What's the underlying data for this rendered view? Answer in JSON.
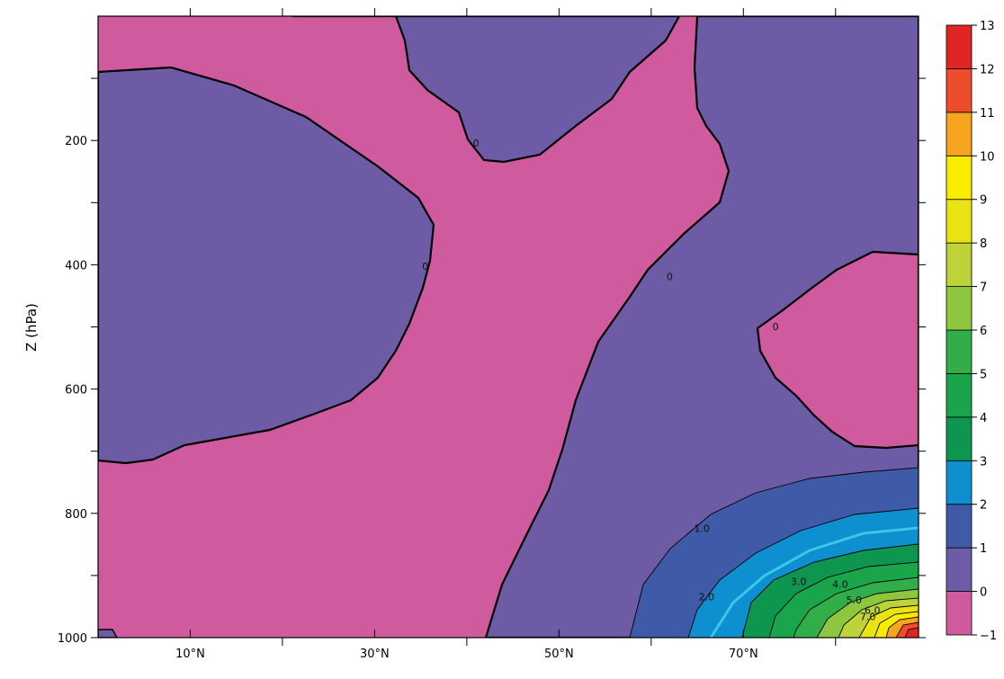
{
  "chart_data": {
    "type": "heatmap",
    "subtype": "filled-contour",
    "title": "",
    "xlabel": "",
    "ylabel": "Z (hPa)",
    "x_ticks": [
      {
        "value": 10,
        "label": "10°N"
      },
      {
        "value": 30,
        "label": "30°N"
      },
      {
        "value": 50,
        "label": "50°N"
      },
      {
        "value": 70,
        "label": "70°N"
      }
    ],
    "x_minor_ticks": [
      20,
      40,
      60,
      80
    ],
    "xlim": [
      0,
      89
    ],
    "y_ticks": [
      {
        "value": 200,
        "label": "200"
      },
      {
        "value": 400,
        "label": "400"
      },
      {
        "value": 600,
        "label": "600"
      },
      {
        "value": 800,
        "label": "800"
      },
      {
        "value": 1000,
        "label": "1000"
      }
    ],
    "y_minor_ticks": [
      100,
      300,
      500,
      700,
      900
    ],
    "ylim": [
      1000,
      0
    ],
    "grid": false,
    "colorbar": {
      "placement": "right",
      "levels": [
        -1,
        0,
        1,
        2,
        3,
        4,
        5,
        6,
        7,
        8,
        9,
        10,
        11,
        12,
        13
      ],
      "labels": [
        "−1",
        "0",
        "1",
        "2",
        "3",
        "4",
        "5",
        "6",
        "7",
        "8",
        "9",
        "10",
        "11",
        "12",
        "13"
      ],
      "colors": [
        "#d05a9e",
        "#6d5ba6",
        "#3f5ba8",
        "#0e8fcf",
        "#0e9650",
        "#1ba54b",
        "#31ad4a",
        "#8fc640",
        "#bdd339",
        "#eae213",
        "#f9ec00",
        "#f7a51e",
        "#ee4d2b",
        "#e02525"
      ]
    },
    "contour_labels": [
      {
        "text": "0",
        "x": 41,
        "y": 210
      },
      {
        "text": "0",
        "x": 35.5,
        "y": 408
      },
      {
        "text": "0",
        "x": 62,
        "y": 425
      },
      {
        "text": "0",
        "x": 73.5,
        "y": 505
      },
      {
        "text": "1.0",
        "x": 65.5,
        "y": 830
      },
      {
        "text": "2.0",
        "x": 66,
        "y": 940
      },
      {
        "text": "3.0",
        "x": 76,
        "y": 915
      },
      {
        "text": "4.0",
        "x": 80.5,
        "y": 920
      },
      {
        "text": "5.0",
        "x": 82,
        "y": 945
      },
      {
        "text": "6.0",
        "x": 84,
        "y": 962
      },
      {
        "text": "7.0",
        "x": 83.5,
        "y": 972
      }
    ]
  }
}
